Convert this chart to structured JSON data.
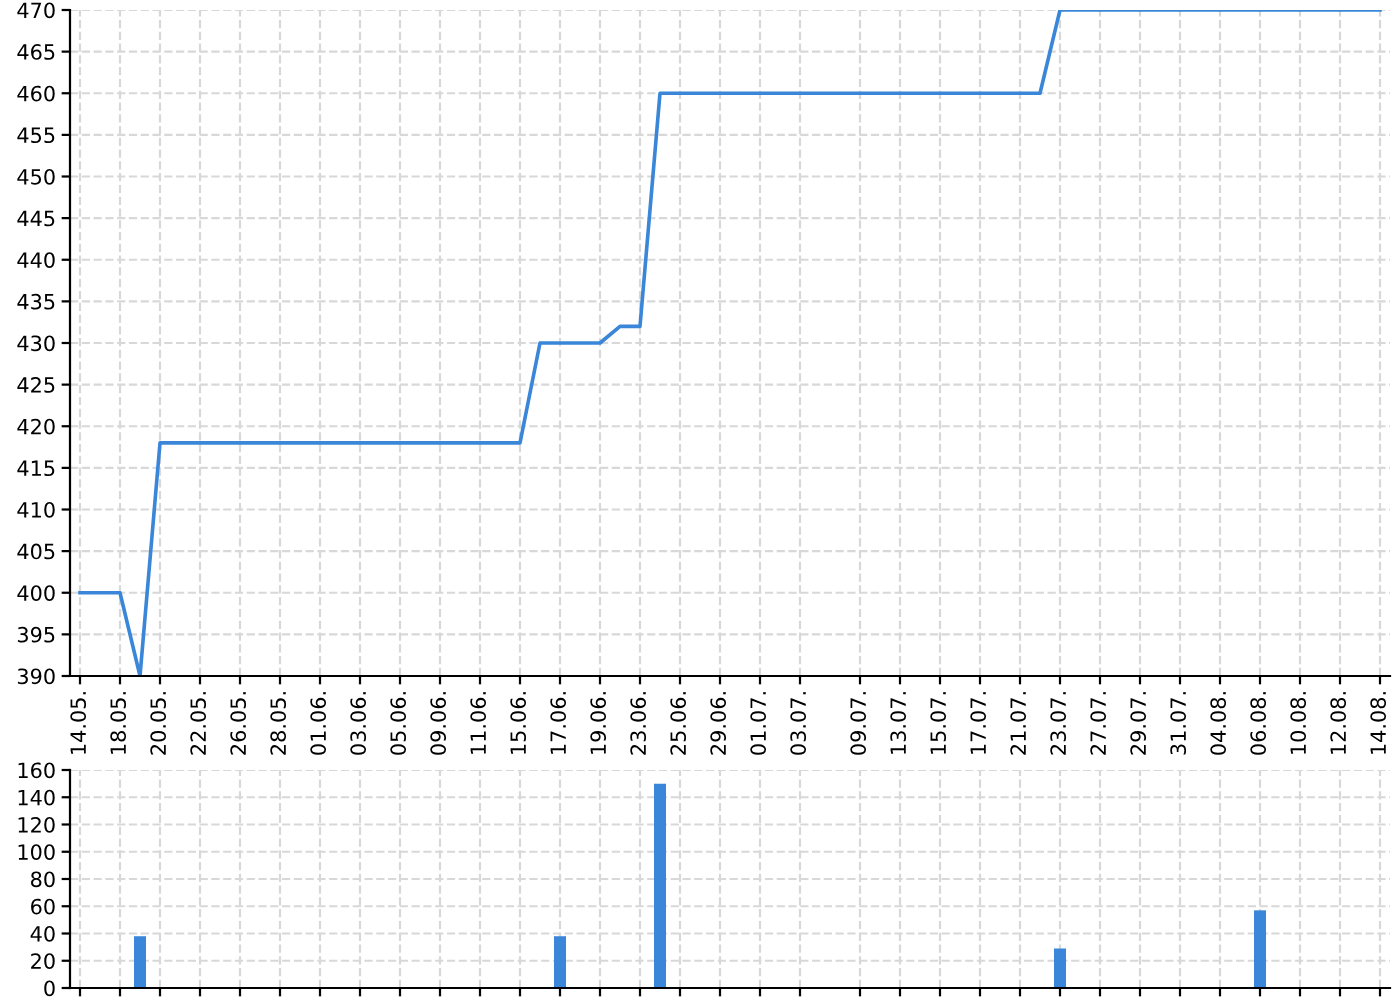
{
  "chart_data": [
    {
      "type": "line",
      "categories": [
        "14.05.",
        null,
        "18.05.",
        null,
        "20.05.",
        null,
        "22.05.",
        null,
        "26.05.",
        null,
        "28.05.",
        null,
        "01.06.",
        null,
        "03.06.",
        null,
        "05.06.",
        null,
        "09.06.",
        null,
        "11.06.",
        null,
        "15.06.",
        null,
        "17.06.",
        null,
        "19.06.",
        null,
        "23.06.",
        null,
        "25.06.",
        null,
        "29.06.",
        null,
        "01.07.",
        null,
        "03.07.",
        null,
        null,
        "09.07.",
        null,
        "13.07.",
        null,
        "15.07.",
        null,
        "17.07.",
        null,
        "21.07.",
        null,
        "23.07.",
        null,
        "27.07.",
        null,
        "29.07.",
        null,
        "31.07.",
        null,
        "04.08.",
        null,
        "06.08.",
        null,
        "10.08.",
        null,
        "12.08.",
        null,
        "14.08."
      ],
      "series": [
        {
          "color": "#3a86d8",
          "values": [
            400,
            400,
            400,
            390,
            418,
            418,
            418,
            418,
            418,
            418,
            418,
            418,
            418,
            418,
            418,
            418,
            418,
            418,
            418,
            418,
            418,
            418,
            418,
            430,
            430,
            430,
            430,
            432,
            432,
            460,
            460,
            460,
            460,
            460,
            460,
            460,
            460,
            460,
            460,
            460,
            460,
            460,
            460,
            460,
            460,
            460,
            460,
            460,
            460,
            470,
            470,
            470,
            470,
            470,
            470,
            470,
            470,
            470,
            470,
            470,
            470,
            470,
            470,
            470,
            470,
            470
          ]
        }
      ],
      "ylim": [
        390,
        470
      ],
      "yticks": [
        390,
        395,
        400,
        405,
        410,
        415,
        420,
        425,
        430,
        435,
        440,
        445,
        450,
        455,
        460,
        465,
        470
      ],
      "grid": true,
      "line_style": "solid",
      "marker": "none"
    },
    {
      "type": "bar",
      "categories": [
        "14.05.",
        null,
        "18.05.",
        null,
        "20.05.",
        null,
        "22.05.",
        null,
        "26.05.",
        null,
        "28.05.",
        null,
        "01.06.",
        null,
        "03.06.",
        null,
        "05.06.",
        null,
        "09.06.",
        null,
        "11.06.",
        null,
        "15.06.",
        null,
        "17.06.",
        null,
        "19.06.",
        null,
        "23.06.",
        null,
        "25.06.",
        null,
        "29.06.",
        null,
        "01.07.",
        null,
        "03.07.",
        null,
        null,
        "09.07.",
        null,
        "13.07.",
        null,
        "15.07.",
        null,
        "17.07.",
        null,
        "21.07.",
        null,
        "23.07.",
        null,
        "27.07.",
        null,
        "29.07.",
        null,
        "31.07.",
        null,
        "04.08.",
        null,
        "06.08.",
        null,
        "10.08.",
        null,
        "12.08.",
        null,
        "14.08."
      ],
      "series": [
        {
          "color": "#3a86d8",
          "values": [
            null,
            null,
            null,
            38,
            null,
            null,
            null,
            null,
            null,
            null,
            null,
            null,
            null,
            null,
            null,
            null,
            null,
            null,
            null,
            null,
            null,
            null,
            null,
            null,
            38,
            null,
            null,
            null,
            null,
            150,
            null,
            null,
            null,
            null,
            null,
            null,
            null,
            null,
            null,
            null,
            null,
            null,
            null,
            null,
            null,
            null,
            null,
            null,
            null,
            29,
            null,
            null,
            null,
            null,
            null,
            null,
            null,
            null,
            null,
            57,
            null,
            null,
            null,
            null,
            null,
            null
          ]
        }
      ],
      "ylim": [
        0,
        160
      ],
      "yticks": [
        0,
        20,
        40,
        60,
        80,
        100,
        120,
        140,
        160
      ],
      "grid": true,
      "tick_labels": "y"
    }
  ]
}
